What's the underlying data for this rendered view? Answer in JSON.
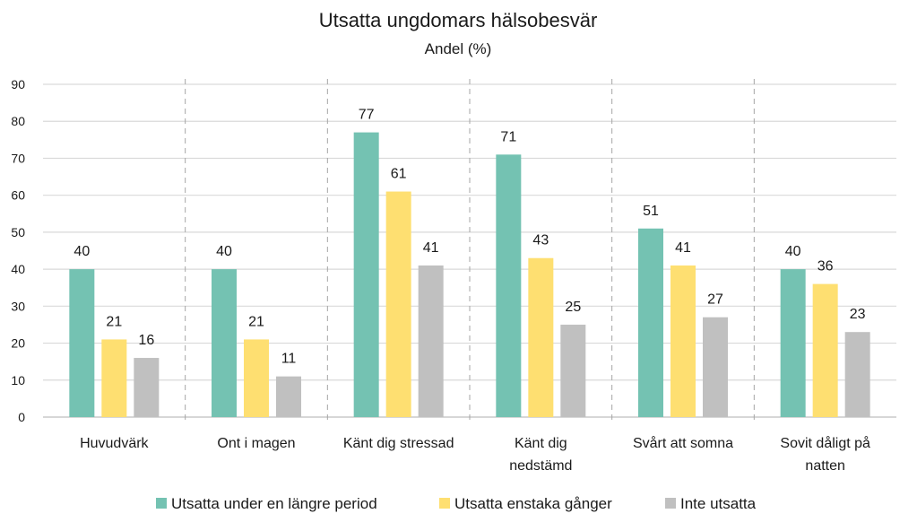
{
  "chart_data": {
    "type": "bar",
    "title": "Utsatta ungdomars hälsobesvär",
    "subtitle": "Andel (%)",
    "xlabel": "",
    "ylabel": "",
    "ylim": [
      0,
      90
    ],
    "yticks": [
      0,
      10,
      20,
      30,
      40,
      50,
      60,
      70,
      80,
      90
    ],
    "grid": true,
    "legend_position": "bottom",
    "categories": [
      [
        "Huvudvärk"
      ],
      [
        "Ont i magen"
      ],
      [
        "Känt dig stressad"
      ],
      [
        "Känt dig",
        "nedstämd"
      ],
      [
        "Svårt att somna"
      ],
      [
        "Sovit dåligt på",
        "natten"
      ]
    ],
    "series": [
      {
        "name": "Utsatta under en längre period",
        "color": "#74c2b2",
        "values": [
          40,
          40,
          77,
          71,
          51,
          40
        ]
      },
      {
        "name": "Utsatta enstaka gånger",
        "color": "#fedf71",
        "values": [
          21,
          21,
          61,
          43,
          41,
          36
        ]
      },
      {
        "name": "Inte utsatta",
        "color": "#c0c0c0",
        "values": [
          16,
          11,
          41,
          25,
          27,
          23
        ]
      }
    ]
  }
}
